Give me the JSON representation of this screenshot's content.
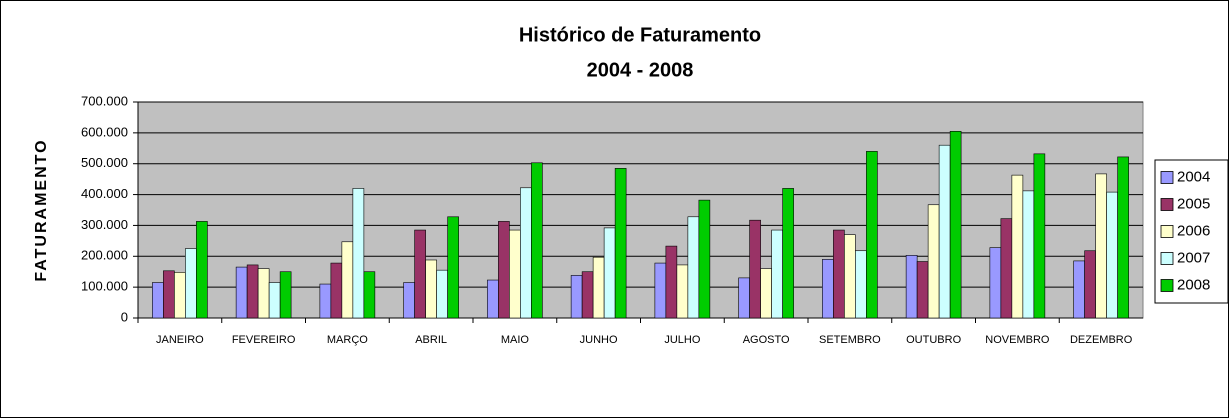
{
  "chart_data": {
    "type": "bar",
    "title": "Histórico de Faturamento",
    "subtitle": "2004 - 2008",
    "y_label": "FATURAMENTO",
    "categories": [
      "JANEIRO",
      "FEVEREIRO",
      "MARÇO",
      "ABRIL",
      "MAIO",
      "JUNHO",
      "JULHO",
      "AGOSTO",
      "SETEMBRO",
      "OUTUBRO",
      "NOVEMBRO",
      "DEZEMBRO"
    ],
    "series": [
      {
        "name": "2004",
        "color": "#9999ff",
        "values": [
          115000,
          165000,
          110000,
          115000,
          123000,
          138000,
          178000,
          130000,
          190000,
          203000,
          228000,
          185000
        ]
      },
      {
        "name": "2005",
        "color": "#993366",
        "values": [
          153000,
          172000,
          178000,
          285000,
          313000,
          150000,
          233000,
          317000,
          285000,
          183000,
          322000,
          218000
        ]
      },
      {
        "name": "2006",
        "color": "#ffffcc",
        "values": [
          148000,
          160000,
          247000,
          188000,
          285000,
          197000,
          172000,
          160000,
          270000,
          367000,
          463000,
          467000
        ]
      },
      {
        "name": "2007",
        "color": "#ccffff",
        "values": [
          225000,
          115000,
          420000,
          155000,
          422000,
          292000,
          328000,
          285000,
          218000,
          560000,
          412000,
          408000
        ]
      },
      {
        "name": "2008",
        "color": "#00cc00",
        "values": [
          313000,
          150000,
          150000,
          328000,
          503000,
          485000,
          382000,
          420000,
          540000,
          605000,
          532000,
          522000
        ]
      }
    ],
    "ylim": [
      0,
      700000
    ],
    "yticks": [
      0,
      {
        "value": 100000,
        "label": "100.000"
      },
      {
        "value": 200000,
        "label": "200.000"
      },
      {
        "value": 300000,
        "label": "300.000"
      },
      {
        "value": 400000,
        "label": "400.000"
      },
      {
        "value": 500000,
        "label": "500.000"
      },
      {
        "value": 600000,
        "label": "600.000"
      },
      {
        "value": 700000,
        "label": "700.000"
      }
    ],
    "grid": true,
    "legend": "right"
  }
}
